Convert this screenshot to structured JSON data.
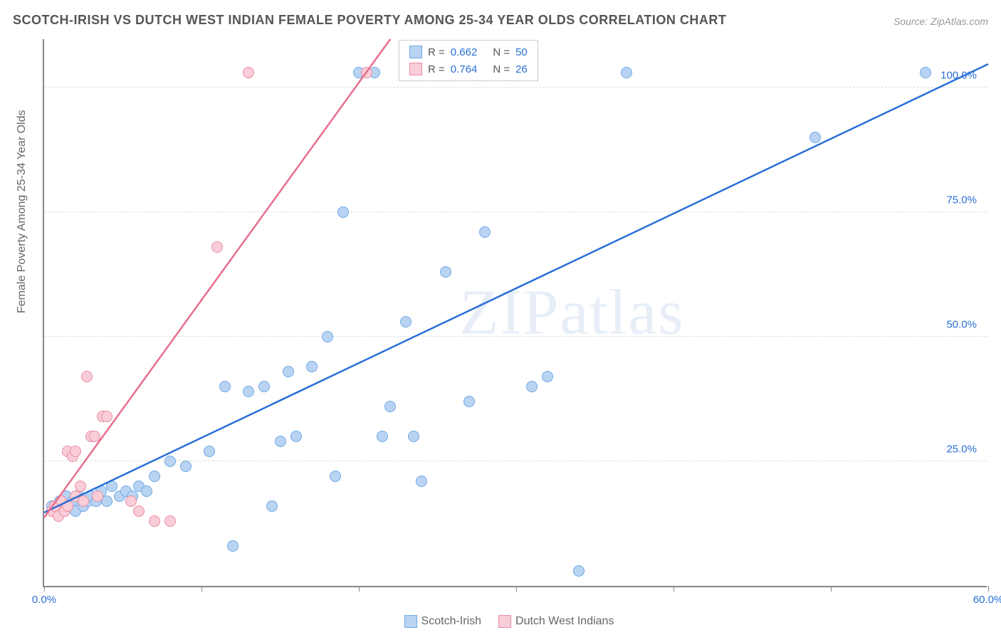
{
  "title": "SCOTCH-IRISH VS DUTCH WEST INDIAN FEMALE POVERTY AMONG 25-34 YEAR OLDS CORRELATION CHART",
  "source": "Source: ZipAtlas.com",
  "y_axis_label": "Female Poverty Among 25-34 Year Olds",
  "watermark": "ZIPatlas",
  "chart": {
    "type": "scatter",
    "xlim": [
      0,
      60
    ],
    "ylim": [
      0,
      110
    ],
    "x_ticks": [
      0,
      10,
      20,
      30,
      40,
      50,
      60
    ],
    "x_tick_labels": {
      "0": "0.0%",
      "60": "60.0%"
    },
    "y_ticks": [
      25,
      50,
      75,
      100
    ],
    "y_tick_labels": {
      "25": "25.0%",
      "50": "50.0%",
      "75": "75.0%",
      "100": "100.0%"
    },
    "background_color": "#ffffff",
    "grid_color": "#dddddd",
    "axis_color": "#888888",
    "tick_label_color_x": "#2a6fd6",
    "tick_label_color_y": "#2a6fd6"
  },
  "series": [
    {
      "name": "Scotch-Irish",
      "marker_fill": "#b9d4f2",
      "marker_stroke": "#6fa8e8",
      "line_color": "#2a6fd6",
      "r": "0.662",
      "n": "50",
      "trend": {
        "x1": 0,
        "y1": 15,
        "x2": 60,
        "y2": 105
      },
      "points": [
        [
          0.5,
          16
        ],
        [
          0.8,
          15
        ],
        [
          1.0,
          17
        ],
        [
          1.2,
          15
        ],
        [
          1.4,
          18
        ],
        [
          1.6,
          16
        ],
        [
          1.8,
          17
        ],
        [
          2.0,
          15
        ],
        [
          2.2,
          18
        ],
        [
          2.5,
          16
        ],
        [
          2.8,
          17
        ],
        [
          3.0,
          18
        ],
        [
          3.3,
          17
        ],
        [
          3.6,
          19
        ],
        [
          4.0,
          17
        ],
        [
          4.3,
          20
        ],
        [
          4.8,
          18
        ],
        [
          5.2,
          19
        ],
        [
          5.6,
          18
        ],
        [
          6.0,
          20
        ],
        [
          6.5,
          19
        ],
        [
          7.0,
          22
        ],
        [
          8.0,
          25
        ],
        [
          9.0,
          24
        ],
        [
          10.5,
          27
        ],
        [
          11.5,
          40
        ],
        [
          12.0,
          8
        ],
        [
          13.0,
          39
        ],
        [
          14.0,
          40
        ],
        [
          14.5,
          16
        ],
        [
          15.0,
          29
        ],
        [
          15.5,
          43
        ],
        [
          16.0,
          30
        ],
        [
          17.0,
          44
        ],
        [
          18.0,
          50
        ],
        [
          18.5,
          22
        ],
        [
          19.0,
          75
        ],
        [
          20.0,
          103
        ],
        [
          21.0,
          103
        ],
        [
          21.5,
          30
        ],
        [
          22.0,
          36
        ],
        [
          23.0,
          53
        ],
        [
          23.5,
          30
        ],
        [
          24.0,
          21
        ],
        [
          25.5,
          63
        ],
        [
          27.0,
          37
        ],
        [
          28.0,
          71
        ],
        [
          31.0,
          40
        ],
        [
          32.0,
          42
        ],
        [
          34.0,
          3
        ],
        [
          37.0,
          103
        ],
        [
          49.0,
          90
        ],
        [
          56.0,
          103
        ]
      ]
    },
    {
      "name": "Dutch West Indians",
      "marker_fill": "#f9cdd8",
      "marker_stroke": "#e98ba3",
      "line_color": "#e76f8d",
      "r": "0.764",
      "n": "26",
      "trend": {
        "x1": 0,
        "y1": 14,
        "x2": 22,
        "y2": 110
      },
      "points": [
        [
          0.5,
          15
        ],
        [
          0.7,
          16
        ],
        [
          0.9,
          14
        ],
        [
          1.1,
          17
        ],
        [
          1.3,
          15
        ],
        [
          1.5,
          16
        ],
        [
          1.5,
          27
        ],
        [
          1.8,
          26
        ],
        [
          2.0,
          18
        ],
        [
          2.0,
          27
        ],
        [
          2.3,
          20
        ],
        [
          2.5,
          17
        ],
        [
          2.7,
          42
        ],
        [
          3.0,
          30
        ],
        [
          3.2,
          30
        ],
        [
          3.4,
          18
        ],
        [
          3.7,
          34
        ],
        [
          4.0,
          34
        ],
        [
          5.5,
          17
        ],
        [
          6.0,
          15
        ],
        [
          7.0,
          13
        ],
        [
          8.0,
          13
        ],
        [
          11.0,
          68
        ],
        [
          13.0,
          103
        ],
        [
          20.5,
          103
        ]
      ]
    }
  ],
  "legend_top": {
    "r_label": "R =",
    "n_label": "N ="
  },
  "legend_bottom": {
    "items": [
      "Scotch-Irish",
      "Dutch West Indians"
    ]
  }
}
